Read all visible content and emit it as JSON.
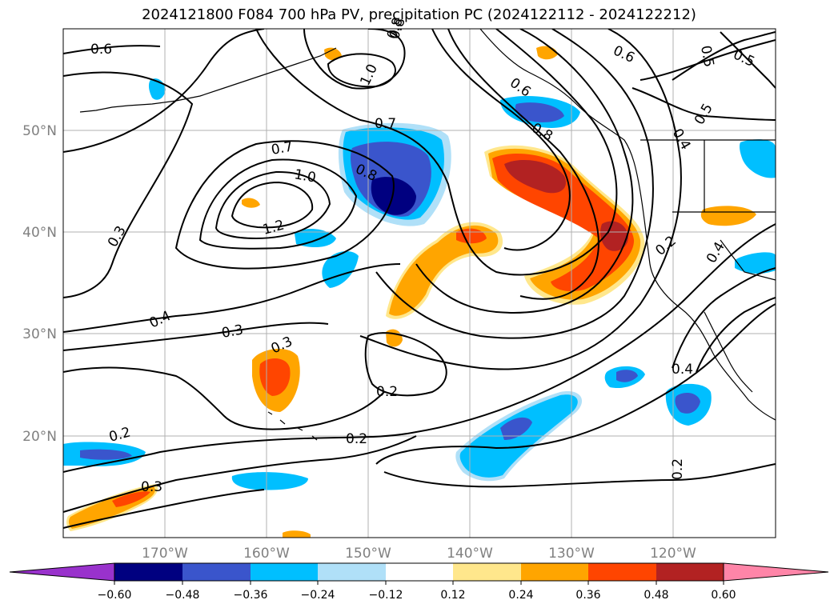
{
  "title": "2024121800 F084 700 hPa PV, precipitation PC (2024122112 - 2024122212)",
  "map": {
    "lon_labels": [
      "170°W",
      "160°W",
      "150°W",
      "140°W",
      "130°W",
      "120°W"
    ],
    "lat_labels": [
      "50°N",
      "40°N",
      "30°N",
      "20°N"
    ],
    "contour_labels": [
      "0.6",
      "0.6",
      "0.5",
      "0.5",
      "0.5",
      "0.6",
      "0.8",
      "1.0",
      "0.7",
      "0.7",
      "0.8",
      "1.0",
      "1.2",
      "0.8",
      "0.4",
      "0.2",
      "0.4",
      "0.3",
      "0.4",
      "0.3",
      "0.3",
      "0.2",
      "0.2",
      "0.2",
      "0.3",
      "0.4",
      "0.2",
      "0.8"
    ]
  },
  "colorbar": {
    "ticks": [
      "−0.60",
      "−0.48",
      "−0.36",
      "−0.24",
      "−0.12",
      "0.12",
      "0.24",
      "0.36",
      "0.48",
      "0.60"
    ],
    "colors": [
      "#9932cc",
      "#000080",
      "#3a55cc",
      "#00bfff",
      "#b0e0f8",
      "#ffffff",
      "#ffe78c",
      "#ffa500",
      "#ff4500",
      "#b22222",
      "#ff85a8"
    ]
  },
  "fill_colors": {
    "dark_blue": "#000080",
    "blue": "#3a55cc",
    "cyan": "#00bfff",
    "light_blue": "#b0e0f8",
    "yellow": "#ffe78c",
    "orange": "#ffa500",
    "red_orange": "#ff4500",
    "dark_red": "#b22222"
  }
}
